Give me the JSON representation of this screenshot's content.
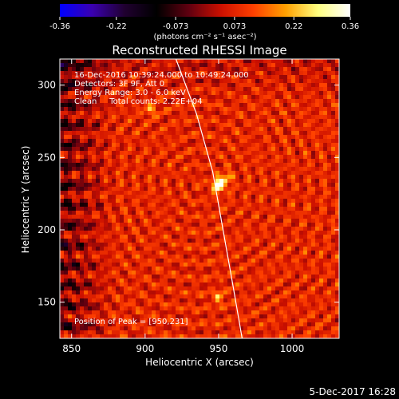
{
  "colorbar": {
    "ticks": [
      "-0.36",
      "-0.22",
      "-0.073",
      "0.073",
      "0.22",
      "0.36"
    ],
    "tick_values": [
      -0.36,
      -0.22,
      -0.073,
      0.073,
      0.22,
      0.36
    ],
    "range": [
      -0.36,
      0.36
    ],
    "unit_label": "(photons cm⁻² s⁻¹ asec⁻²)",
    "colormap": [
      "#0000ff",
      "#3a00b0",
      "#200030",
      "#000000",
      "#600010",
      "#cc1000",
      "#ff4000",
      "#ffa000",
      "#ffff80",
      "#ffffff"
    ]
  },
  "chart_data": {
    "type": "heatmap",
    "title": "Reconstructed RHESSI Image",
    "xlabel": "Heliocentric X (arcsec)",
    "ylabel": "Heliocentric Y (arcsec)",
    "xlim": [
      842,
      1032
    ],
    "ylim": [
      125,
      318
    ],
    "xticks": [
      850,
      900,
      950,
      1000
    ],
    "yticks": [
      150,
      200,
      250,
      300
    ],
    "xtick_labels": [
      "850",
      "900",
      "950",
      "1000"
    ],
    "ytick_labels": [
      "150",
      "200",
      "250",
      "300"
    ],
    "peak": {
      "x": 950,
      "y": 231
    },
    "secondary_sources": [
      {
        "x": 955,
        "y": 236
      },
      {
        "x": 904,
        "y": 283
      },
      {
        "x": 950,
        "y": 153
      }
    ],
    "limb_curve": {
      "x": [
        921,
        935,
        946,
        953,
        960,
        966
      ],
      "y": [
        318,
        280,
        240,
        200,
        160,
        125
      ]
    },
    "annotations": [
      "16-Dec-2016 10:39:24.000 to 10:49:24.000",
      "Detectors: 3F 9F, Att 0",
      "Energy Range: 3.0 - 6.0 keV",
      "Clean     Total counts: 2.22E+04",
      "Position of Peak = [950,231]"
    ]
  },
  "footer": {
    "date": "5-Dec-2017 16:28"
  }
}
